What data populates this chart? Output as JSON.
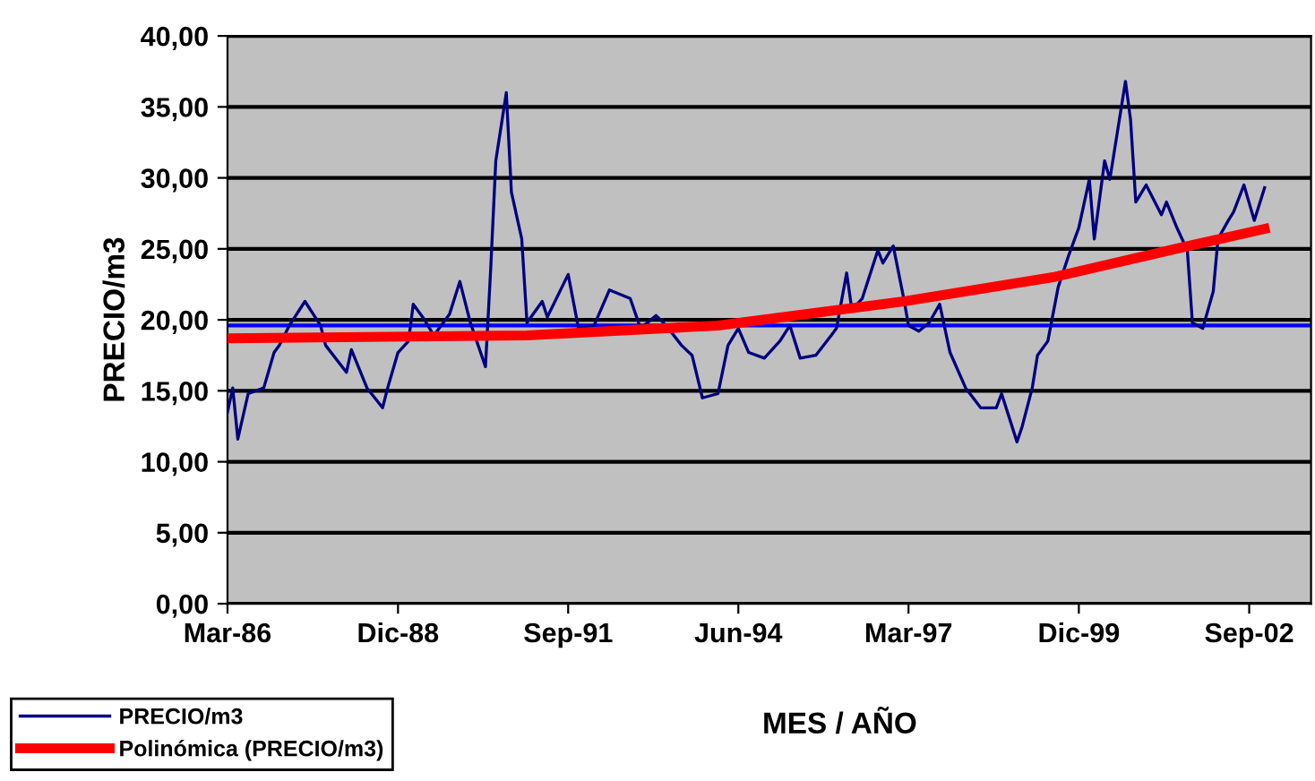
{
  "chart_data": {
    "type": "line",
    "xlabel": "MES / AÑO",
    "ylabel": "PRECIO/m3",
    "xlim": [
      "1986-03",
      "2003-09"
    ],
    "xticks": [
      {
        "value": "1986-03",
        "label": "Mar-86"
      },
      {
        "value": "1988-12",
        "label": "Dic-88"
      },
      {
        "value": "1991-09",
        "label": "Sep-91"
      },
      {
        "value": "1994-06",
        "label": "Jun-94"
      },
      {
        "value": "1997-03",
        "label": "Mar-97"
      },
      {
        "value": "1999-12",
        "label": "Dic-99"
      },
      {
        "value": "2002-09",
        "label": "Sep-02"
      }
    ],
    "ylim": [
      0,
      40
    ],
    "yticks": [
      {
        "value": 0,
        "label": "0,00"
      },
      {
        "value": 5,
        "label": "5,00"
      },
      {
        "value": 10,
        "label": "10,00"
      },
      {
        "value": 15,
        "label": "15,00"
      },
      {
        "value": 20,
        "label": "20,00"
      },
      {
        "value": 25,
        "label": "25,00"
      },
      {
        "value": 30,
        "label": "30,00"
      },
      {
        "value": 35,
        "label": "35,00"
      },
      {
        "value": 40,
        "label": "40,00"
      }
    ],
    "grid": "y",
    "legend": "bottom left",
    "ref_lines": [
      {
        "axis": "y",
        "value": 19.6,
        "color": "#0000ff"
      }
    ],
    "series": [
      {
        "name": "PRECIO/m3",
        "color": "#000080",
        "line_style": "solid",
        "x": [
          "1986-03",
          "1986-04",
          "1986-05",
          "1986-07",
          "1986-10",
          "1986-12",
          "1987-01",
          "1987-03",
          "1987-06",
          "1987-09",
          "1987-10",
          "1988-02",
          "1988-03",
          "1988-06",
          "1988-09",
          "1988-10",
          "1988-12",
          "1989-02",
          "1989-03",
          "1989-05",
          "1989-07",
          "1989-10",
          "1989-12",
          "1990-02",
          "1990-05",
          "1990-06",
          "1990-07",
          "1990-09",
          "1990-10",
          "1990-12",
          "1991-01",
          "1991-04",
          "1991-05",
          "1991-09",
          "1991-11",
          "1992-02",
          "1992-05",
          "1992-09",
          "1992-11",
          "1993-02",
          "1993-04",
          "1993-07",
          "1993-09",
          "1993-11",
          "1994-02",
          "1994-04",
          "1994-06",
          "1994-08",
          "1994-11",
          "1995-02",
          "1995-04",
          "1995-06",
          "1995-09",
          "1995-12",
          "1996-01",
          "1996-03",
          "1996-04",
          "1996-06",
          "1996-09",
          "1996-10",
          "1996-12",
          "1997-02",
          "1997-03",
          "1997-05",
          "1997-07",
          "1997-09",
          "1997-11",
          "1998-02",
          "1998-05",
          "1998-08",
          "1998-09",
          "1998-12",
          "1999-01",
          "1999-03",
          "1999-04",
          "1999-06",
          "1999-08",
          "1999-10",
          "1999-12",
          "2000-02",
          "2000-03",
          "2000-05",
          "2000-06",
          "2000-09",
          "2000-10",
          "2000-11",
          "2001-01",
          "2001-04",
          "2001-05",
          "2001-07",
          "2001-09",
          "2001-10",
          "2001-12",
          "2002-02",
          "2002-03",
          "2002-05",
          "2002-06",
          "2002-08",
          "2002-10",
          "2002-12"
        ],
        "values": [
          13.5,
          15.2,
          11.6,
          14.8,
          15.2,
          17.7,
          18.2,
          19.6,
          21.3,
          19.6,
          18.2,
          16.3,
          17.9,
          15.2,
          13.8,
          15.2,
          17.7,
          18.5,
          21.1,
          20.1,
          18.9,
          20.4,
          22.7,
          19.8,
          16.7,
          23.6,
          31.2,
          36.0,
          29.0,
          25.7,
          19.8,
          21.3,
          20.2,
          23.2,
          19.4,
          19.6,
          22.1,
          21.5,
          19.4,
          20.3,
          19.6,
          18.2,
          17.5,
          14.5,
          14.8,
          18.2,
          19.4,
          17.7,
          17.3,
          18.5,
          19.6,
          17.3,
          17.5,
          18.9,
          19.4,
          23.3,
          20.7,
          21.5,
          24.9,
          24.0,
          25.2,
          21.5,
          19.6,
          19.2,
          19.8,
          21.1,
          17.7,
          15.2,
          13.8,
          13.8,
          14.8,
          11.4,
          12.5,
          15.2,
          17.5,
          18.5,
          22.3,
          24.5,
          26.5,
          29.9,
          25.7,
          31.2,
          29.9,
          36.8,
          34.1,
          28.3,
          29.5,
          27.4,
          28.3,
          26.5,
          24.9,
          19.8,
          19.4,
          22.0,
          25.7,
          27.0,
          27.6,
          29.5,
          27.0,
          29.3
        ]
      },
      {
        "name": "Polinómica (PRECIO/m3)",
        "color": "#ff0000",
        "line_style": "solid",
        "x": [
          "1986-03",
          "1991-01",
          "1994-02",
          "1997-02",
          "1999-07",
          "2001-08",
          "2002-12"
        ],
        "values": [
          18.7,
          18.9,
          19.6,
          21.3,
          23.0,
          25.1,
          26.4
        ]
      }
    ]
  }
}
